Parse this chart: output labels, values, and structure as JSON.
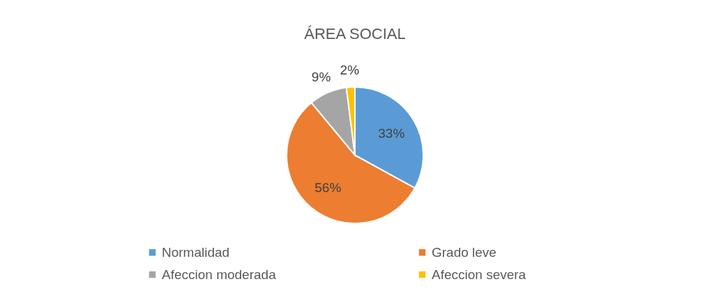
{
  "chart_data": {
    "type": "pie",
    "title": "ÁREA SOCIAL",
    "categories": [
      "Normalidad",
      "Grado leve",
      "Afeccion moderada",
      "Afeccion severa"
    ],
    "values": [
      33,
      56,
      9,
      2
    ],
    "colors": [
      "#5b9bd5",
      "#ed7d31",
      "#a5a5a5",
      "#ffc000"
    ],
    "value_labels": [
      "33%",
      "56%",
      "9%",
      "2%"
    ],
    "legend": "bottom"
  }
}
